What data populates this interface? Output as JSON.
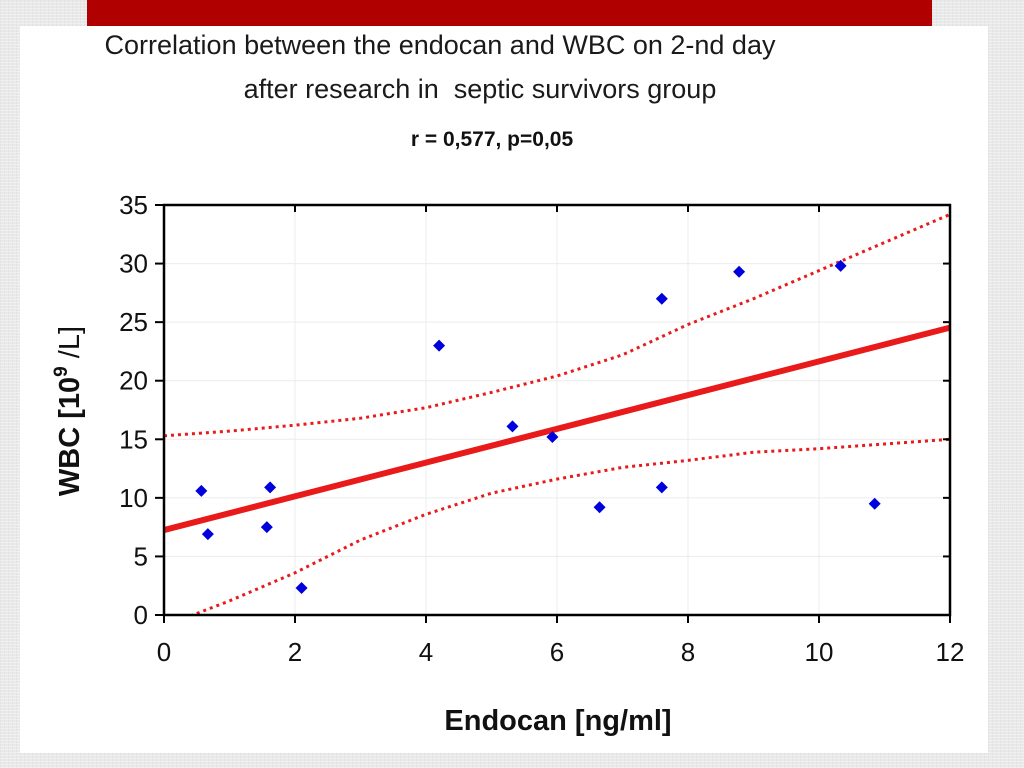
{
  "slide": {
    "accent_color": "#b00000",
    "title_line1": "Correlation between the endocan and WBC on 2-nd day",
    "title_line2": "after research in  septic survivors group",
    "stats": "r =  0,577, p=0,05"
  },
  "chart_data": {
    "type": "scatter",
    "title": "Correlation between the endocan and WBC on 2-nd day after research in  septic survivors group",
    "subtitle": "r =  0,577, p=0,05",
    "xlabel": "Endocan [ng/ml]",
    "ylabel_main": "WBC [10",
    "ylabel_sup": "9",
    "ylabel_tail": " /L]",
    "xlim": [
      0,
      12
    ],
    "ylim": [
      0,
      35
    ],
    "xticks": [
      0,
      2,
      4,
      6,
      8,
      10,
      12
    ],
    "yticks": [
      0,
      5,
      10,
      15,
      20,
      25,
      30,
      35
    ],
    "grid": true,
    "marker_color": "#0000dd",
    "line_color": "#e81a1a",
    "points": [
      {
        "x": 0.57,
        "y": 10.6
      },
      {
        "x": 0.67,
        "y": 6.9
      },
      {
        "x": 1.57,
        "y": 7.5
      },
      {
        "x": 1.62,
        "y": 10.9
      },
      {
        "x": 2.1,
        "y": 2.3
      },
      {
        "x": 4.2,
        "y": 23.0
      },
      {
        "x": 5.32,
        "y": 16.1
      },
      {
        "x": 5.93,
        "y": 15.2
      },
      {
        "x": 6.65,
        "y": 9.2
      },
      {
        "x": 7.6,
        "y": 27.0
      },
      {
        "x": 7.6,
        "y": 10.9
      },
      {
        "x": 8.78,
        "y": 29.3
      },
      {
        "x": 10.33,
        "y": 29.8
      },
      {
        "x": 10.85,
        "y": 9.5
      }
    ],
    "regression": {
      "intercept": 7.25,
      "slope": 1.44
    },
    "confidence_upper": [
      [
        0,
        15.3
      ],
      [
        1,
        15.7
      ],
      [
        2,
        16.2
      ],
      [
        3,
        16.8
      ],
      [
        4,
        17.7
      ],
      [
        5,
        19.0
      ],
      [
        6,
        20.4
      ],
      [
        7,
        22.2
      ],
      [
        8,
        24.8
      ],
      [
        9,
        27.0
      ],
      [
        10,
        29.4
      ],
      [
        11,
        31.8
      ],
      [
        12,
        34.2
      ]
    ],
    "confidence_lower": [
      [
        0.3,
        -0.3
      ],
      [
        1,
        1.2
      ],
      [
        2,
        3.6
      ],
      [
        3,
        6.4
      ],
      [
        4,
        8.6
      ],
      [
        5,
        10.4
      ],
      [
        6,
        11.6
      ],
      [
        7,
        12.6
      ],
      [
        8,
        13.2
      ],
      [
        9,
        13.9
      ],
      [
        10,
        14.2
      ],
      [
        11,
        14.6
      ],
      [
        12,
        15.0
      ]
    ]
  }
}
